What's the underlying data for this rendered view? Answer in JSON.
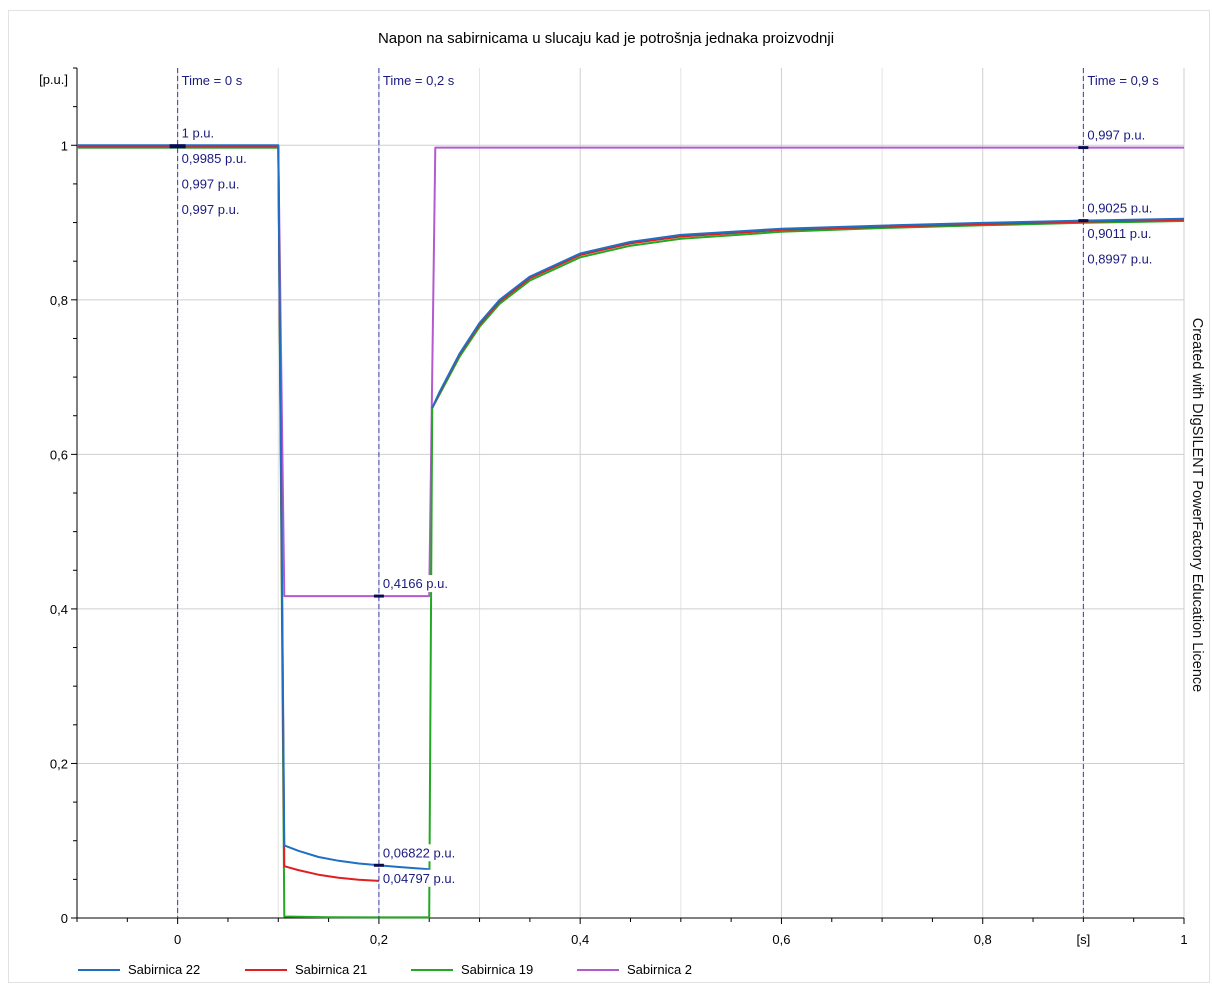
{
  "chart_data": {
    "type": "line",
    "title": "Napon na sabirnicama u slucaju kad je potrošnja jednaka proizvodnji",
    "ylabel": "[p.u.]",
    "xlabel": "[s]",
    "xlim": [
      -0.1,
      1.0
    ],
    "ylim": [
      0,
      1.1
    ],
    "grid": true,
    "legend_position": "bottom",
    "x_ticks": [
      {
        "v": 0,
        "label": "0"
      },
      {
        "v": 0.2,
        "label": "0,2"
      },
      {
        "v": 0.4,
        "label": "0,4"
      },
      {
        "v": 0.6,
        "label": "0,6"
      },
      {
        "v": 0.8,
        "label": "0,8"
      },
      {
        "v": 1.0,
        "label": "1"
      }
    ],
    "y_ticks": [
      {
        "v": 0,
        "label": "0"
      },
      {
        "v": 0.2,
        "label": "0,2"
      },
      {
        "v": 0.4,
        "label": "0,4"
      },
      {
        "v": 0.6,
        "label": "0,6"
      },
      {
        "v": 0.8,
        "label": "0,8"
      },
      {
        "v": 1.0,
        "label": "1"
      }
    ],
    "series": [
      {
        "name": "Sabirnica 22",
        "color": "#1f6fc4",
        "points": [
          [
            -0.1,
            1.0
          ],
          [
            0.1,
            1.0
          ],
          [
            0.106,
            0.094
          ],
          [
            0.12,
            0.087
          ],
          [
            0.14,
            0.079
          ],
          [
            0.16,
            0.074
          ],
          [
            0.18,
            0.0705
          ],
          [
            0.2,
            0.06822
          ],
          [
            0.22,
            0.066
          ],
          [
            0.25,
            0.063
          ]
        ],
        "points2": [
          [
            0.253,
            0.66
          ],
          [
            0.26,
            0.68
          ],
          [
            0.28,
            0.73
          ],
          [
            0.3,
            0.77
          ],
          [
            0.32,
            0.8
          ],
          [
            0.35,
            0.83
          ],
          [
            0.4,
            0.86
          ],
          [
            0.45,
            0.875
          ],
          [
            0.5,
            0.884
          ],
          [
            0.6,
            0.892
          ],
          [
            0.7,
            0.896
          ],
          [
            0.8,
            0.8995
          ],
          [
            0.9,
            0.9025
          ],
          [
            1.0,
            0.905
          ]
        ]
      },
      {
        "name": "Sabirnica 21",
        "color": "#e02020",
        "points": [
          [
            -0.1,
            0.9985
          ],
          [
            0.1,
            0.9985
          ],
          [
            0.106,
            0.067
          ],
          [
            0.12,
            0.062
          ],
          [
            0.14,
            0.056
          ],
          [
            0.16,
            0.052
          ],
          [
            0.18,
            0.0495
          ],
          [
            0.2,
            0.04797
          ]
        ],
        "points2": [
          [
            0.253,
            0.66
          ],
          [
            0.26,
            0.679
          ],
          [
            0.28,
            0.729
          ],
          [
            0.3,
            0.768
          ],
          [
            0.32,
            0.798
          ],
          [
            0.35,
            0.828
          ],
          [
            0.4,
            0.858
          ],
          [
            0.45,
            0.873
          ],
          [
            0.5,
            0.882
          ],
          [
            0.6,
            0.8905
          ],
          [
            0.7,
            0.8945
          ],
          [
            0.8,
            0.898
          ],
          [
            0.9,
            0.9011
          ],
          [
            1.0,
            0.9035
          ]
        ]
      },
      {
        "name": "Sabirnica 19",
        "color": "#22a822",
        "points": [
          [
            -0.1,
            0.997
          ],
          [
            0.1,
            0.997
          ],
          [
            0.106,
            0.002
          ],
          [
            0.15,
            0.001
          ],
          [
            0.2,
            0.0008
          ],
          [
            0.25,
            0.0008
          ],
          [
            0.253,
            0.66
          ],
          [
            0.26,
            0.677
          ],
          [
            0.28,
            0.726
          ],
          [
            0.3,
            0.765
          ],
          [
            0.32,
            0.795
          ],
          [
            0.35,
            0.825
          ],
          [
            0.4,
            0.855
          ],
          [
            0.45,
            0.87
          ],
          [
            0.5,
            0.879
          ],
          [
            0.6,
            0.888
          ],
          [
            0.7,
            0.893
          ],
          [
            0.8,
            0.8965
          ],
          [
            0.9,
            0.8997
          ],
          [
            1.0,
            0.902
          ]
        ]
      },
      {
        "name": "Sabirnica 2",
        "color": "#b45ad0",
        "points": [
          [
            -0.1,
            0.997
          ],
          [
            0.1,
            0.997
          ],
          [
            0.106,
            0.4166
          ],
          [
            0.2,
            0.4166
          ],
          [
            0.25,
            0.4166
          ],
          [
            0.256,
            0.997
          ],
          [
            1.0,
            0.997
          ]
        ]
      }
    ],
    "markers": [
      {
        "x": 0,
        "label": "Time = 0 s"
      },
      {
        "x": 0.2,
        "label": "Time = 0,2 s"
      },
      {
        "x": 0.9,
        "label": "Time = 0,9 s"
      }
    ],
    "annotations": [
      {
        "x": 0,
        "lines": [
          "1 p.u.",
          "0,9985 p.u.",
          "0,997 p.u.",
          "0,997 p.u."
        ]
      },
      {
        "x": 0.2,
        "y": 0.4166,
        "lines": [
          "0,4166 p.u."
        ]
      },
      {
        "x": 0.2,
        "y": 0.06822,
        "lines": [
          "0,06822 p.u.",
          "0,04797 p.u."
        ]
      },
      {
        "x": 0.9,
        "y": 0.997,
        "lines": [
          "0,997 p.u."
        ]
      },
      {
        "x": 0.9,
        "y": 0.9025,
        "lines": [
          "0,9025 p.u.",
          "0,9011 p.u.",
          "0,8997 p.u."
        ]
      }
    ]
  },
  "side_note": "Created with DIgSILENT PowerFactory Education Licence",
  "legend": [
    {
      "label": "Sabirnica 22",
      "color": "#1f6fc4"
    },
    {
      "label": "Sabirnica 21",
      "color": "#e02020"
    },
    {
      "label": "Sabirnica 19",
      "color": "#22a822"
    },
    {
      "label": "Sabirnica 2",
      "color": "#b45ad0"
    }
  ]
}
